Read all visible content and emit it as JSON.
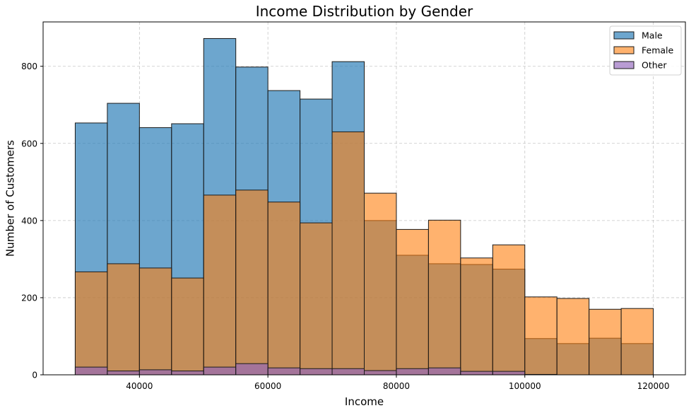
{
  "chart_data": {
    "type": "bar",
    "subtype": "overlapping-histogram",
    "title": "Income Distribution by Gender",
    "xlabel": "Income",
    "ylabel": "Number of Customers",
    "xlim": [
      25000,
      125000
    ],
    "ylim": [
      0,
      915
    ],
    "bin_edges": [
      30000,
      35000,
      40000,
      45000,
      50000,
      55000,
      60000,
      65000,
      70000,
      75000,
      80000,
      85000,
      90000,
      95000,
      100000,
      105000,
      110000,
      115000,
      120000
    ],
    "x_ticks": [
      40000,
      60000,
      80000,
      100000,
      120000
    ],
    "x_tick_labels": [
      "40000",
      "60000",
      "80000",
      "100000",
      "120000"
    ],
    "y_ticks": [
      0,
      200,
      400,
      600,
      800
    ],
    "y_tick_labels": [
      "0",
      "200",
      "400",
      "600",
      "800"
    ],
    "grid": true,
    "legend_position": "top-right",
    "series": [
      {
        "name": "Male",
        "color": "#1f77b4",
        "opacity": 0.65,
        "values": [
          653,
          704,
          641,
          651,
          872,
          798,
          737,
          715,
          812,
          400,
          310,
          288,
          286,
          274,
          94,
          81,
          95,
          81
        ]
      },
      {
        "name": "Female",
        "color": "#ff7f0e",
        "opacity": 0.6,
        "values": [
          267,
          288,
          277,
          251,
          466,
          479,
          448,
          394,
          630,
          471,
          377,
          401,
          303,
          337,
          202,
          198,
          170,
          172
        ]
      },
      {
        "name": "Other",
        "color": "#9467bd",
        "opacity": 0.65,
        "values": [
          20,
          10,
          13,
          10,
          20,
          29,
          18,
          16,
          16,
          11,
          16,
          18,
          9,
          9,
          1,
          0,
          0,
          0
        ]
      }
    ]
  }
}
